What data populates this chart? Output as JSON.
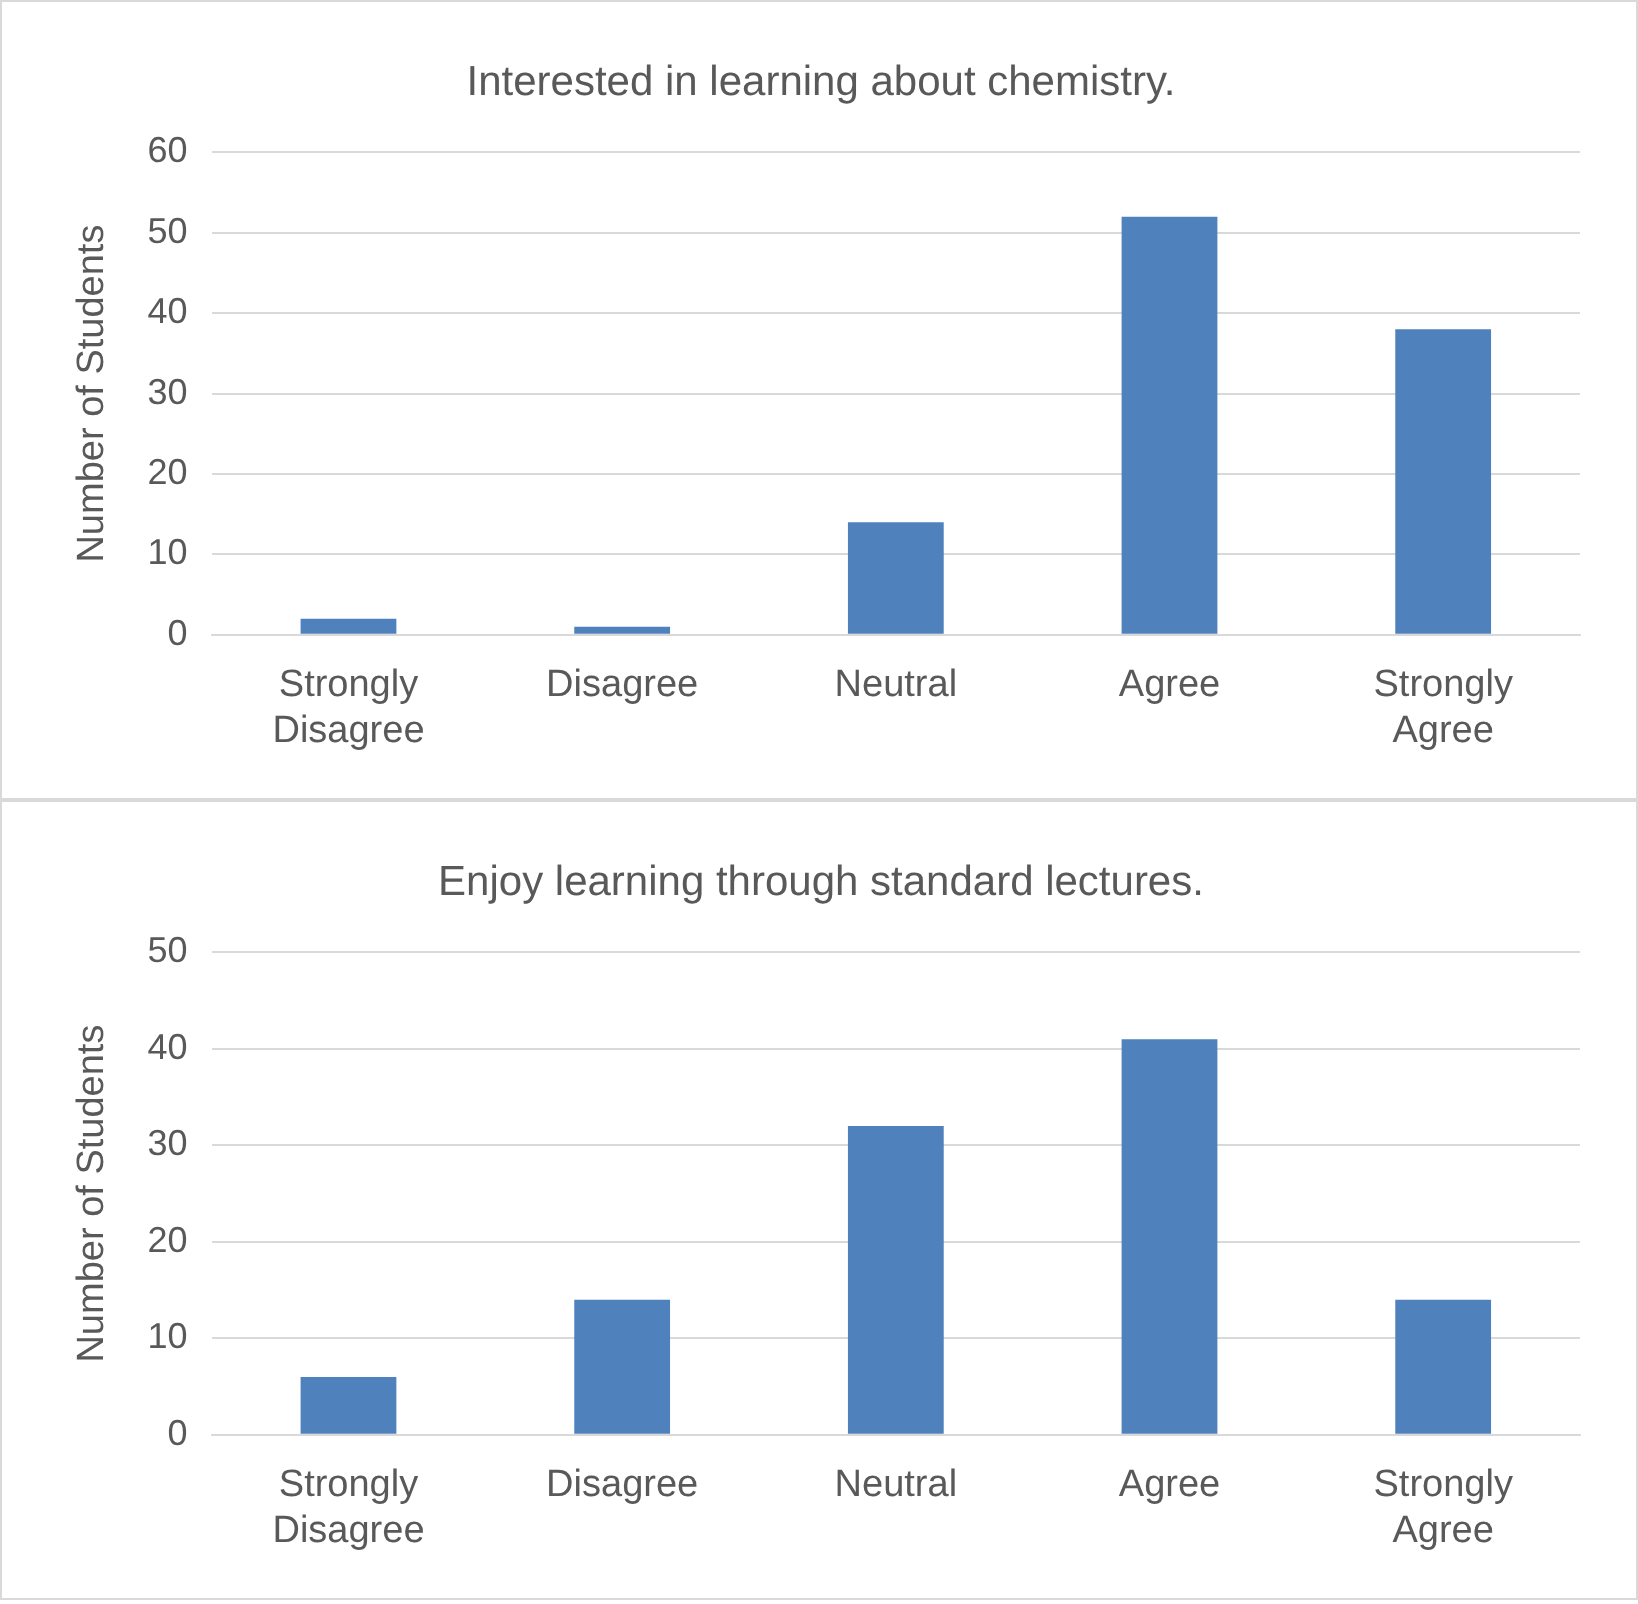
{
  "chart_data": [
    {
      "type": "bar",
      "title": "Interested in learning about chemistry.",
      "ylabel": "Number of Students",
      "categories": [
        "Strongly Disagree",
        "Disagree",
        "Neutral",
        "Agree",
        "Strongly Agree"
      ],
      "values": [
        2,
        1,
        14,
        52,
        38
      ],
      "color": "#4f81bd",
      "ylim": [
        0,
        60
      ],
      "yticks": [
        0,
        10,
        20,
        30,
        40,
        50,
        60
      ],
      "grid": "y",
      "legend": false
    },
    {
      "type": "bar",
      "title": "Enjoy learning through standard lectures.",
      "ylabel": "Number of Students",
      "categories": [
        "Strongly Disagree",
        "Disagree",
        "Neutral",
        "Agree",
        "Strongly Agree"
      ],
      "values": [
        6,
        14,
        32,
        41,
        14
      ],
      "color": "#4f81bd",
      "ylim": [
        0,
        50
      ],
      "yticks": [
        0,
        10,
        20,
        30,
        40,
        50
      ],
      "grid": "y",
      "legend": false
    }
  ]
}
